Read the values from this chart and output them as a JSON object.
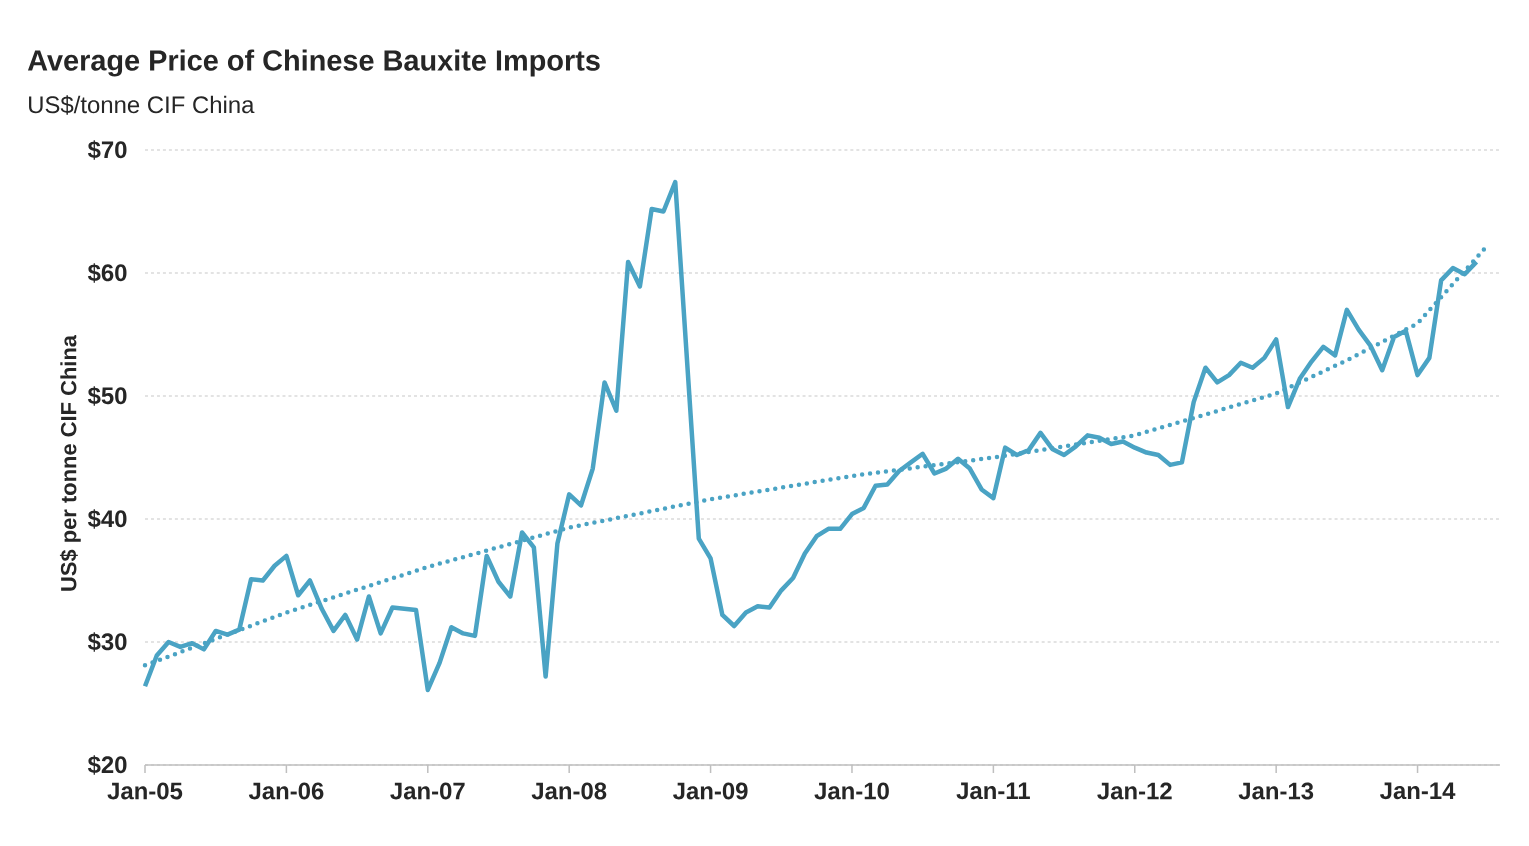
{
  "chart_data": {
    "type": "line",
    "title": "Average Price of Chinese Bauxite Imports",
    "subtitle": "US$/tonne CIF China",
    "ylabel": "US$ per tonne CIF China",
    "x": [
      "2005-01",
      "2005-02",
      "2005-03",
      "2005-04",
      "2005-05",
      "2005-06",
      "2005-07",
      "2005-08",
      "2005-09",
      "2005-10",
      "2005-11",
      "2005-12",
      "2006-01",
      "2006-02",
      "2006-03",
      "2006-04",
      "2006-05",
      "2006-06",
      "2006-07",
      "2006-08",
      "2006-09",
      "2006-10",
      "2006-11",
      "2006-12",
      "2007-01",
      "2007-02",
      "2007-03",
      "2007-04",
      "2007-05",
      "2007-06",
      "2007-07",
      "2007-08",
      "2007-09",
      "2007-10",
      "2007-11",
      "2007-12",
      "2008-01",
      "2008-02",
      "2008-03",
      "2008-04",
      "2008-05",
      "2008-06",
      "2008-07",
      "2008-08",
      "2008-09",
      "2008-10",
      "2008-12",
      "2009-01",
      "2009-02",
      "2009-03",
      "2009-04",
      "2009-05",
      "2009-06",
      "2009-07",
      "2009-08",
      "2009-09",
      "2009-10",
      "2009-11",
      "2009-12",
      "2010-01",
      "2010-02",
      "2010-03",
      "2010-04",
      "2010-05",
      "2010-06",
      "2010-07",
      "2010-08",
      "2010-09",
      "2010-10",
      "2010-11",
      "2010-12",
      "2011-01",
      "2011-02",
      "2011-03",
      "2011-04",
      "2011-05",
      "2011-06",
      "2011-07",
      "2011-08",
      "2011-09",
      "2011-10",
      "2011-11",
      "2011-12",
      "2012-01",
      "2012-02",
      "2012-03",
      "2012-04",
      "2012-05",
      "2012-06",
      "2012-07",
      "2012-08",
      "2012-09",
      "2012-10",
      "2012-11",
      "2012-12",
      "2013-01",
      "2013-02",
      "2013-03",
      "2013-04",
      "2013-05",
      "2013-06",
      "2013-07",
      "2013-08",
      "2013-09",
      "2013-10",
      "2013-11",
      "2013-12",
      "2014-01",
      "2014-02",
      "2014-03",
      "2014-04",
      "2014-05",
      "2014-06"
    ],
    "series": [
      {
        "color": "#4aa3c4",
        "line_style": "solid",
        "values": [
          26.4,
          28.9,
          30.0,
          29.6,
          29.9,
          29.4,
          30.9,
          30.6,
          31.0,
          35.1,
          35.0,
          36.2,
          37.0,
          33.8,
          35.0,
          32.7,
          30.9,
          32.2,
          30.2,
          33.7,
          30.7,
          32.8,
          32.7,
          32.6,
          26.1,
          28.3,
          31.2,
          30.7,
          30.5,
          37.0,
          34.9,
          33.7,
          38.9,
          37.7,
          27.2,
          38.0,
          42.0,
          41.1,
          44.1,
          51.1,
          48.8,
          60.9,
          58.9,
          65.2,
          65.0,
          67.4,
          38.4,
          36.8,
          32.2,
          31.3,
          32.4,
          32.9,
          32.8,
          34.2,
          35.2,
          37.2,
          38.6,
          39.2,
          39.2,
          40.4,
          40.9,
          42.7,
          42.8,
          43.9,
          44.6,
          45.3,
          43.7,
          44.1,
          44.9,
          44.1,
          42.4,
          41.7,
          45.8,
          45.2,
          45.6,
          47.0,
          45.7,
          45.2,
          45.9,
          46.8,
          46.6,
          46.1,
          46.3,
          45.8,
          45.4,
          45.2,
          44.4,
          44.6,
          49.5,
          52.3,
          51.1,
          51.7,
          52.7,
          52.3,
          53.1,
          54.6,
          49.1,
          51.4,
          52.8,
          54.0,
          53.3,
          57.0,
          55.4,
          54.1,
          52.1,
          54.8,
          55.3,
          51.7,
          53.1,
          59.4,
          60.4,
          59.9,
          60.9
        ]
      },
      {
        "color": "#4aa3c4",
        "line_style": "dotted",
        "x": [
          "2005-01",
          "2006-01",
          "2007-01",
          "2008-01",
          "2009-01",
          "2010-01",
          "2011-01",
          "2012-01",
          "2013-01",
          "2013-07",
          "2014-01",
          "2014-07"
        ],
        "values": [
          28.1,
          32.4,
          36.1,
          39.3,
          41.6,
          43.5,
          45.0,
          46.8,
          50.2,
          52.9,
          55.9,
          62.3
        ]
      }
    ],
    "xlim": [
      "2005-01",
      "2014-08"
    ],
    "xticks": [
      {
        "value": "2005-01",
        "label": "Jan-05"
      },
      {
        "value": "2006-01",
        "label": "Jan-06"
      },
      {
        "value": "2007-01",
        "label": "Jan-07"
      },
      {
        "value": "2008-01",
        "label": "Jan-08"
      },
      {
        "value": "2009-01",
        "label": "Jan-09"
      },
      {
        "value": "2010-01",
        "label": "Jan-10"
      },
      {
        "value": "2011-01",
        "label": "Jan-11"
      },
      {
        "value": "2012-01",
        "label": "Jan-12"
      },
      {
        "value": "2013-01",
        "label": "Jan-13"
      },
      {
        "value": "2014-01",
        "label": "Jan-14"
      }
    ],
    "ylim": [
      20,
      70
    ],
    "yticks": [
      {
        "value": 20,
        "label": "$20"
      },
      {
        "value": 30,
        "label": "$30"
      },
      {
        "value": 40,
        "label": "$40"
      },
      {
        "value": 50,
        "label": "$50"
      },
      {
        "value": 60,
        "label": "$60"
      },
      {
        "value": 70,
        "label": "$70"
      }
    ],
    "grid": "y"
  }
}
